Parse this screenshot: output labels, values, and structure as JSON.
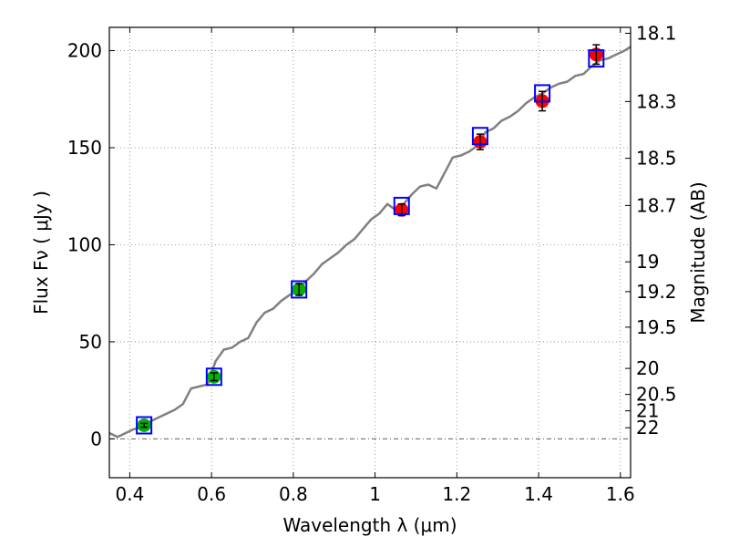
{
  "chart_data": {
    "type": "scatter",
    "xlabel": "Wavelength  λ (μm)",
    "ylabel": "Flux  Fν  ( μJy )",
    "y2label": "Magnitude (AB)",
    "xlim": [
      0.35,
      1.625
    ],
    "ylim": [
      -20,
      212
    ],
    "grid": true,
    "x_ticks": [
      0.4,
      0.6,
      0.8,
      1.0,
      1.2,
      1.4,
      1.6
    ],
    "x_tick_labels": [
      "0.4",
      "0.6",
      "0.8",
      "1",
      "1.2",
      "1.4",
      "1.6"
    ],
    "y_ticks": [
      0,
      50,
      100,
      150,
      200
    ],
    "y_tick_labels": [
      "0",
      "50",
      "100",
      "150",
      "200"
    ],
    "mag_ticks": [
      18.1,
      18.3,
      18.5,
      18.7,
      19,
      19.2,
      19.5,
      20,
      20.5,
      21,
      22
    ],
    "mag_tick_labels": [
      "18.1",
      "18.3",
      "18.5",
      "18.7",
      "19",
      "19.2",
      "19.5",
      "20",
      "20.5",
      "21",
      "22"
    ],
    "zero_point_uJy": 3631000000,
    "series": [
      {
        "kind": "spectrum",
        "color": "#808080",
        "x": [
          0.35,
          0.37,
          0.39,
          0.41,
          0.43,
          0.45,
          0.47,
          0.49,
          0.51,
          0.53,
          0.55,
          0.57,
          0.59,
          0.61,
          0.63,
          0.65,
          0.67,
          0.69,
          0.71,
          0.73,
          0.75,
          0.77,
          0.79,
          0.81,
          0.83,
          0.85,
          0.87,
          0.89,
          0.91,
          0.93,
          0.95,
          0.97,
          0.99,
          1.01,
          1.03,
          1.05,
          1.07,
          1.09,
          1.11,
          1.13,
          1.15,
          1.17,
          1.19,
          1.21,
          1.23,
          1.25,
          1.27,
          1.29,
          1.31,
          1.33,
          1.35,
          1.37,
          1.39,
          1.41,
          1.43,
          1.45,
          1.47,
          1.49,
          1.51,
          1.53,
          1.55,
          1.57,
          1.59,
          1.61,
          1.625
        ],
        "y": [
          3,
          1,
          3,
          5,
          6,
          9,
          11,
          13,
          15,
          18,
          26,
          27,
          28,
          40,
          46,
          47,
          50,
          52,
          60,
          65,
          67,
          71,
          74,
          76,
          81,
          85,
          90,
          93,
          96,
          100,
          103,
          108,
          113,
          116,
          121,
          118,
          121,
          126,
          130,
          131,
          129,
          137,
          145,
          146,
          148,
          151,
          158,
          160,
          164,
          166,
          169,
          173,
          176,
          178,
          181,
          183,
          184,
          187,
          188,
          192,
          195,
          196,
          198,
          200,
          202
        ]
      },
      {
        "kind": "model-photometry",
        "marker": "open-square",
        "color": "#0000ff",
        "x": [
          0.435,
          0.606,
          0.814,
          1.065,
          1.257,
          1.409,
          1.541
        ],
        "y": [
          7,
          32,
          77,
          120,
          156,
          178,
          196
        ]
      },
      {
        "kind": "optical-photometry",
        "marker": "filled-circle",
        "color": "#00b000",
        "x": [
          0.435,
          0.606,
          0.814
        ],
        "y": [
          7,
          32,
          77
        ],
        "yerr": [
          1,
          2,
          3
        ]
      },
      {
        "kind": "ir-photometry",
        "marker": "filled-circle",
        "color": "#ff0000",
        "x": [
          1.065,
          1.257,
          1.409,
          1.541
        ],
        "y": [
          118,
          153,
          174,
          198
        ],
        "yerr": [
          3,
          4,
          5,
          5
        ]
      }
    ]
  }
}
